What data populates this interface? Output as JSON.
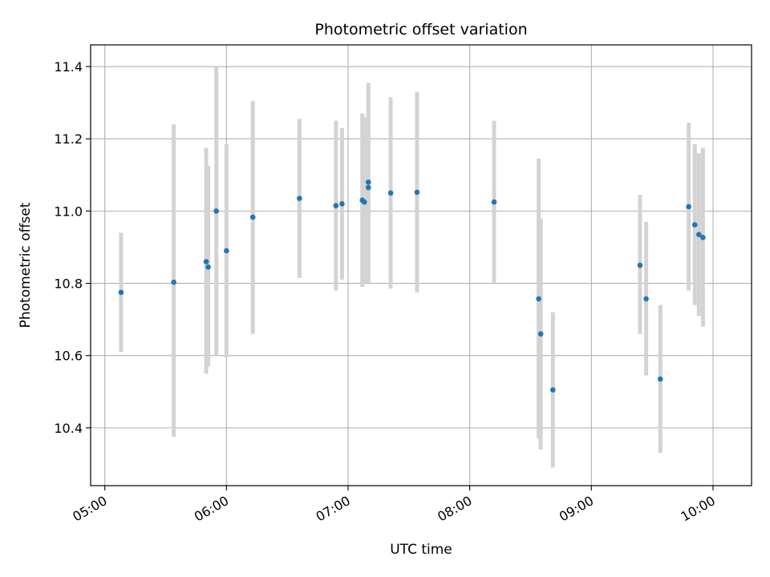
{
  "chart_data": {
    "type": "scatter",
    "title": "Photometric offset variation",
    "xlabel": "UTC time",
    "ylabel": "Photometric offset",
    "x_tick_labels": [
      "05:00",
      "06:00",
      "07:00",
      "08:00",
      "09:00",
      "10:00"
    ],
    "y_tick_labels": [
      "10.4",
      "10.6",
      "10.8",
      "11.0",
      "11.2",
      "11.4"
    ],
    "y_ticks": [
      10.4,
      10.6,
      10.8,
      11.0,
      11.2,
      11.4
    ],
    "xlim": [
      "04:53",
      "10:19"
    ],
    "ylim": [
      10.24,
      11.46
    ],
    "grid": true,
    "legend": "none",
    "point_color": "#1f77b4",
    "errorbar_color": "#d3d3d3",
    "points": [
      {
        "x": "05:08",
        "y": 10.775,
        "err_low": 10.61,
        "err_high": 10.94
      },
      {
        "x": "05:34",
        "y": 10.803,
        "err_low": 10.375,
        "err_high": 11.24
      },
      {
        "x": "05:50",
        "y": 10.86,
        "err_low": 10.55,
        "err_high": 11.175
      },
      {
        "x": "05:51",
        "y": 10.845,
        "err_low": 10.57,
        "err_high": 11.125
      },
      {
        "x": "05:55",
        "y": 11.0,
        "err_low": 10.6,
        "err_high": 11.4
      },
      {
        "x": "06:00",
        "y": 10.89,
        "err_low": 10.595,
        "err_high": 11.185
      },
      {
        "x": "06:13",
        "y": 10.983,
        "err_low": 10.66,
        "err_high": 11.305
      },
      {
        "x": "06:36",
        "y": 11.035,
        "err_low": 10.815,
        "err_high": 11.255
      },
      {
        "x": "06:54",
        "y": 11.015,
        "err_low": 10.78,
        "err_high": 11.25
      },
      {
        "x": "06:57",
        "y": 11.02,
        "err_low": 10.81,
        "err_high": 11.23
      },
      {
        "x": "07:07",
        "y": 11.03,
        "err_low": 10.79,
        "err_high": 11.27
      },
      {
        "x": "07:08",
        "y": 11.025,
        "err_low": 10.8,
        "err_high": 11.26
      },
      {
        "x": "07:10",
        "y": 11.08,
        "err_low": 10.8,
        "err_high": 11.355
      },
      {
        "x": "07:10",
        "y": 11.065,
        "err_low": 10.805,
        "err_high": 11.33
      },
      {
        "x": "07:21",
        "y": 11.05,
        "err_low": 10.785,
        "err_high": 11.315
      },
      {
        "x": "07:34",
        "y": 11.052,
        "err_low": 10.775,
        "err_high": 11.33
      },
      {
        "x": "08:12",
        "y": 11.025,
        "err_low": 10.8,
        "err_high": 11.25
      },
      {
        "x": "08:34",
        "y": 10.757,
        "err_low": 10.37,
        "err_high": 11.145
      },
      {
        "x": "08:35",
        "y": 10.66,
        "err_low": 10.34,
        "err_high": 10.98
      },
      {
        "x": "08:41",
        "y": 10.505,
        "err_low": 10.29,
        "err_high": 10.72
      },
      {
        "x": "09:24",
        "y": 10.85,
        "err_low": 10.66,
        "err_high": 11.045
      },
      {
        "x": "09:27",
        "y": 10.757,
        "err_low": 10.545,
        "err_high": 10.97
      },
      {
        "x": "09:34",
        "y": 10.535,
        "err_low": 10.33,
        "err_high": 10.74
      },
      {
        "x": "09:48",
        "y": 11.012,
        "err_low": 10.78,
        "err_high": 11.245
      },
      {
        "x": "09:51",
        "y": 10.962,
        "err_low": 10.74,
        "err_high": 11.185
      },
      {
        "x": "09:53",
        "y": 10.935,
        "err_low": 10.71,
        "err_high": 11.16
      },
      {
        "x": "09:55",
        "y": 10.927,
        "err_low": 10.68,
        "err_high": 11.175
      }
    ]
  }
}
